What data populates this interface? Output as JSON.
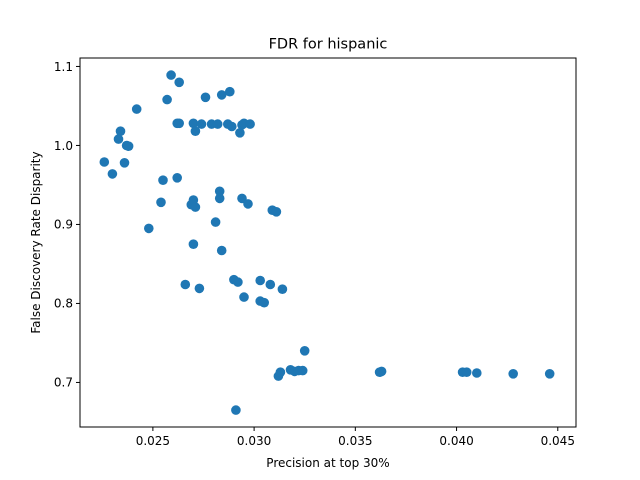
{
  "chart_data": {
    "type": "scatter",
    "title": "FDR for hispanic",
    "xlabel": "Precision at top 30%",
    "ylabel": "False Discovery Rate Disparity",
    "xlim": [
      0.0214,
      0.0459
    ],
    "ylim": [
      0.6436,
      1.1107
    ],
    "xticks": [
      {
        "value": 0.025,
        "label": "0.025"
      },
      {
        "value": 0.03,
        "label": "0.030"
      },
      {
        "value": 0.035,
        "label": "0.035"
      },
      {
        "value": 0.04,
        "label": "0.040"
      },
      {
        "value": 0.045,
        "label": "0.045"
      }
    ],
    "yticks": [
      {
        "value": 0.7,
        "label": "0.7"
      },
      {
        "value": 0.8,
        "label": "0.8"
      },
      {
        "value": 0.9,
        "label": "0.9"
      },
      {
        "value": 1.0,
        "label": "1.0"
      },
      {
        "value": 1.1,
        "label": "1.1"
      }
    ],
    "grid": false,
    "color": "#1f77b4",
    "points": [
      {
        "x": 0.0226,
        "y": 0.979
      },
      {
        "x": 0.023,
        "y": 0.964
      },
      {
        "x": 0.0233,
        "y": 1.008
      },
      {
        "x": 0.0234,
        "y": 1.018
      },
      {
        "x": 0.0236,
        "y": 0.978
      },
      {
        "x": 0.0237,
        "y": 1.0
      },
      {
        "x": 0.0238,
        "y": 0.999
      },
      {
        "x": 0.0242,
        "y": 1.046
      },
      {
        "x": 0.0248,
        "y": 0.895
      },
      {
        "x": 0.0254,
        "y": 0.928
      },
      {
        "x": 0.0255,
        "y": 0.956
      },
      {
        "x": 0.0257,
        "y": 1.058
      },
      {
        "x": 0.0259,
        "y": 1.089
      },
      {
        "x": 0.0262,
        "y": 0.959
      },
      {
        "x": 0.0262,
        "y": 1.028
      },
      {
        "x": 0.0263,
        "y": 1.028
      },
      {
        "x": 0.0263,
        "y": 1.08
      },
      {
        "x": 0.0266,
        "y": 0.824
      },
      {
        "x": 0.0269,
        "y": 0.925
      },
      {
        "x": 0.027,
        "y": 0.931
      },
      {
        "x": 0.027,
        "y": 0.875
      },
      {
        "x": 0.027,
        "y": 1.028
      },
      {
        "x": 0.0271,
        "y": 0.922
      },
      {
        "x": 0.0271,
        "y": 1.018
      },
      {
        "x": 0.0273,
        "y": 0.819
      },
      {
        "x": 0.0274,
        "y": 1.027
      },
      {
        "x": 0.0276,
        "y": 1.061
      },
      {
        "x": 0.0279,
        "y": 1.027
      },
      {
        "x": 0.0281,
        "y": 0.903
      },
      {
        "x": 0.0282,
        "y": 1.027
      },
      {
        "x": 0.0283,
        "y": 0.942
      },
      {
        "x": 0.0283,
        "y": 0.933
      },
      {
        "x": 0.0284,
        "y": 0.867
      },
      {
        "x": 0.0284,
        "y": 1.064
      },
      {
        "x": 0.0287,
        "y": 1.027
      },
      {
        "x": 0.0288,
        "y": 1.068
      },
      {
        "x": 0.0289,
        "y": 1.024
      },
      {
        "x": 0.029,
        "y": 0.83
      },
      {
        "x": 0.0291,
        "y": 0.665
      },
      {
        "x": 0.0292,
        "y": 0.827
      },
      {
        "x": 0.0293,
        "y": 1.016
      },
      {
        "x": 0.0294,
        "y": 0.933
      },
      {
        "x": 0.0294,
        "y": 1.026
      },
      {
        "x": 0.0295,
        "y": 0.808
      },
      {
        "x": 0.0295,
        "y": 1.028
      },
      {
        "x": 0.0297,
        "y": 0.926
      },
      {
        "x": 0.0298,
        "y": 1.027
      },
      {
        "x": 0.0303,
        "y": 0.829
      },
      {
        "x": 0.0303,
        "y": 0.803
      },
      {
        "x": 0.0305,
        "y": 0.801
      },
      {
        "x": 0.0308,
        "y": 0.824
      },
      {
        "x": 0.0309,
        "y": 0.918
      },
      {
        "x": 0.0311,
        "y": 0.916
      },
      {
        "x": 0.0312,
        "y": 0.708
      },
      {
        "x": 0.0313,
        "y": 0.713
      },
      {
        "x": 0.0314,
        "y": 0.818
      },
      {
        "x": 0.0318,
        "y": 0.716
      },
      {
        "x": 0.032,
        "y": 0.714
      },
      {
        "x": 0.0322,
        "y": 0.715
      },
      {
        "x": 0.0324,
        "y": 0.715
      },
      {
        "x": 0.0325,
        "y": 0.74
      },
      {
        "x": 0.0362,
        "y": 0.713
      },
      {
        "x": 0.0363,
        "y": 0.714
      },
      {
        "x": 0.0403,
        "y": 0.713
      },
      {
        "x": 0.0405,
        "y": 0.713
      },
      {
        "x": 0.041,
        "y": 0.712
      },
      {
        "x": 0.0428,
        "y": 0.711
      },
      {
        "x": 0.0446,
        "y": 0.711
      }
    ]
  }
}
